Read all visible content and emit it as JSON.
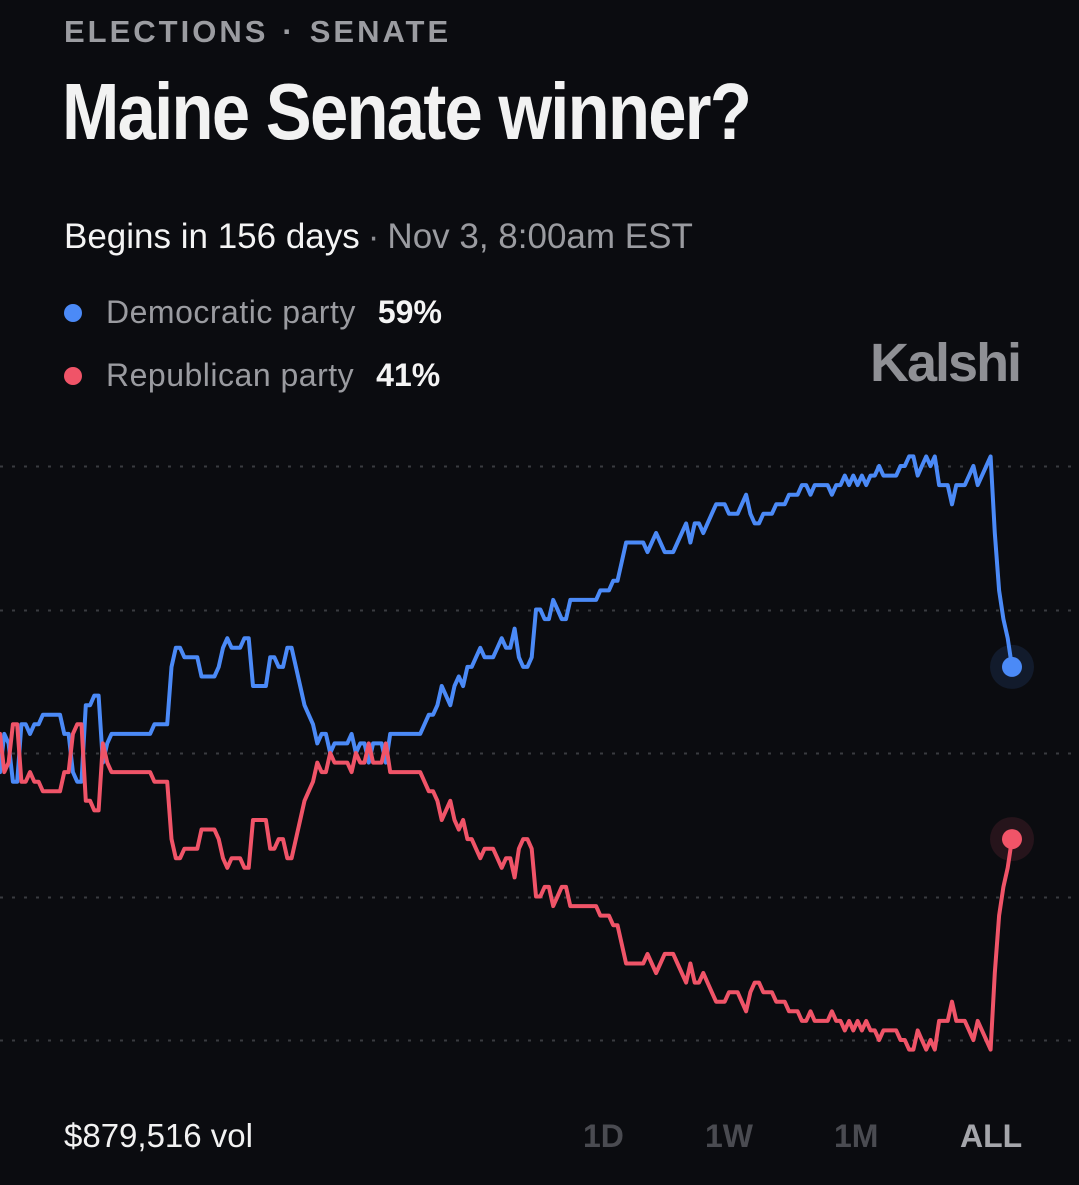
{
  "breadcrumb": {
    "category": "ELECTIONS",
    "separator": "·",
    "subcategory": "SENATE"
  },
  "title": "Maine Senate winner?",
  "schedule": {
    "begins": "Begins in 156 days",
    "separator": "·",
    "date": "Nov 3, 8:00am EST"
  },
  "brand": "Kalshi",
  "colors": {
    "background": "#0b0c10",
    "democratic": "#4b8af7",
    "republican": "#f05468",
    "gridline": "#3a3b40"
  },
  "legend": [
    {
      "name": "Democratic party",
      "value": "59%",
      "color": "#4b8af7"
    },
    {
      "name": "Republican party",
      "value": "41%",
      "color": "#f05468"
    }
  ],
  "volume": "$879,516 vol",
  "range_tabs": [
    {
      "label": "1D",
      "active": false
    },
    {
      "label": "1W",
      "active": false
    },
    {
      "label": "1M",
      "active": false
    },
    {
      "label": "ALL",
      "active": true
    }
  ],
  "chart_data": {
    "type": "line",
    "xlabel": "",
    "ylabel": "",
    "ylim": [
      0,
      100
    ],
    "grid": true,
    "gridlines": [
      20,
      35,
      50,
      65,
      80
    ],
    "series": [
      {
        "name": "Democratic party",
        "color": "#4b8af7",
        "values": [
          48,
          52,
          51,
          47,
          47,
          53,
          53,
          52,
          53,
          53,
          54,
          54,
          54,
          54,
          54,
          52,
          52,
          48,
          47,
          47,
          55,
          55,
          56,
          56,
          49,
          51,
          52,
          52,
          52,
          52,
          52,
          52,
          52,
          52,
          52,
          52,
          53,
          53,
          53,
          53,
          59,
          61,
          61,
          60,
          60,
          60,
          60,
          58,
          58,
          58,
          58,
          59,
          61,
          62,
          61,
          61,
          61,
          62,
          62,
          57,
          57,
          57,
          57,
          60,
          60,
          59,
          59,
          61,
          61,
          59,
          57,
          55,
          54,
          53,
          51,
          52,
          52,
          50,
          51,
          51,
          51,
          51,
          52,
          50,
          51,
          51,
          49,
          51,
          51,
          51,
          49,
          52,
          52,
          52,
          52,
          52,
          52,
          52,
          52,
          53,
          54,
          54,
          55,
          57,
          56,
          55,
          57,
          58,
          57,
          59,
          59,
          60,
          61,
          60,
          60,
          60,
          61,
          62,
          61,
          61,
          63,
          60,
          59,
          59,
          60,
          65,
          65,
          64,
          64,
          66,
          65,
          64,
          64,
          66,
          66,
          66,
          66,
          66,
          66,
          66,
          67,
          67,
          67,
          68,
          68,
          70,
          72,
          72,
          72,
          72,
          72,
          71,
          72,
          73,
          72,
          71,
          71,
          71,
          72,
          73,
          74,
          72,
          74,
          74,
          73,
          74,
          75,
          76,
          76,
          76,
          75,
          75,
          75,
          76,
          77,
          75,
          74,
          74,
          75,
          75,
          75,
          76,
          76,
          76,
          77,
          77,
          77,
          78,
          78,
          77,
          78,
          78,
          78,
          78,
          77,
          78,
          78,
          79,
          78,
          79,
          78,
          79,
          78,
          79,
          79,
          80,
          79,
          79,
          79,
          79,
          80,
          80,
          81,
          81,
          79,
          80,
          81,
          80,
          81,
          78,
          78,
          78,
          76,
          78,
          78,
          78,
          79,
          80,
          78,
          79,
          80,
          81,
          73,
          67,
          64,
          62,
          59
        ]
      },
      {
        "name": "Republican party",
        "color": "#f05468",
        "values": [
          52,
          48,
          49,
          53,
          53,
          47,
          47,
          48,
          47,
          47,
          46,
          46,
          46,
          46,
          46,
          48,
          48,
          52,
          53,
          53,
          45,
          45,
          44,
          44,
          51,
          49,
          48,
          48,
          48,
          48,
          48,
          48,
          48,
          48,
          48,
          48,
          47,
          47,
          47,
          47,
          41,
          39,
          39,
          40,
          40,
          40,
          40,
          42,
          42,
          42,
          42,
          41,
          39,
          38,
          39,
          39,
          39,
          38,
          38,
          43,
          43,
          43,
          43,
          40,
          40,
          41,
          41,
          39,
          39,
          41,
          43,
          45,
          46,
          47,
          49,
          48,
          48,
          50,
          49,
          49,
          49,
          49,
          48,
          50,
          49,
          49,
          51,
          49,
          49,
          49,
          51,
          48,
          48,
          48,
          48,
          48,
          48,
          48,
          48,
          47,
          46,
          46,
          45,
          43,
          44,
          45,
          43,
          42,
          43,
          41,
          41,
          40,
          39,
          40,
          40,
          40,
          39,
          38,
          39,
          39,
          37,
          40,
          41,
          41,
          40,
          35,
          35,
          36,
          36,
          34,
          35,
          36,
          36,
          34,
          34,
          34,
          34,
          34,
          34,
          34,
          33,
          33,
          33,
          32,
          32,
          30,
          28,
          28,
          28,
          28,
          28,
          29,
          28,
          27,
          28,
          29,
          29,
          29,
          28,
          27,
          26,
          28,
          26,
          26,
          27,
          26,
          25,
          24,
          24,
          24,
          25,
          25,
          25,
          24,
          23,
          25,
          26,
          26,
          25,
          25,
          25,
          24,
          24,
          24,
          23,
          23,
          23,
          22,
          22,
          23,
          22,
          22,
          22,
          22,
          23,
          22,
          22,
          21,
          22,
          21,
          22,
          21,
          22,
          21,
          21,
          20,
          21,
          21,
          21,
          21,
          20,
          20,
          19,
          19,
          21,
          20,
          19,
          20,
          19,
          22,
          22,
          22,
          24,
          22,
          22,
          22,
          21,
          20,
          22,
          21,
          20,
          19,
          27,
          33,
          36,
          38,
          41
        ]
      }
    ]
  }
}
